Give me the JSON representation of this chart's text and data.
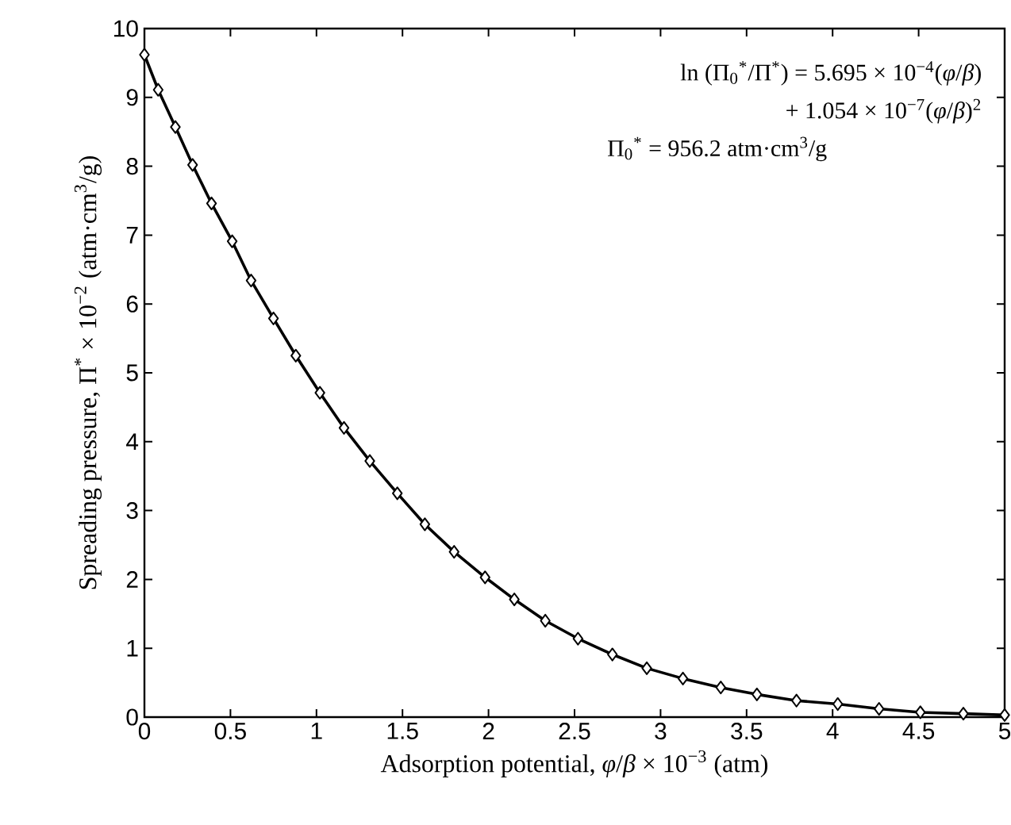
{
  "chart_data": {
    "type": "line",
    "xlabel": "Adsorption potential, *φ*/*β* × 10$^{−3}$ (atm)",
    "ylabel": "Spreading pressure, Π$^{*}$ × 10$^{−2}$ (atm·cm$^{3}$/g)",
    "annotations": [
      "ln (Π$_{0}$$^{*}$/Π$^{*}$) = 5.695 × 10$^{−4}$(*φ*/*β*)",
      "+ 1.054 × 10$^{−7}$(*φ*/*β*)$^{2}$",
      "Π$_{0}$$^{*}$ = 956.2 atm·cm$^{3}$/g"
    ],
    "series": [
      {
        "color": "#000000",
        "x": [
          0,
          0.08,
          0.18,
          0.28,
          0.39,
          0.51,
          0.62,
          0.75,
          0.88,
          1.02,
          1.16,
          1.31,
          1.47,
          1.63,
          1.8,
          1.98,
          2.15,
          2.33,
          2.52,
          2.72,
          2.92,
          3.13,
          3.35,
          3.56,
          3.79,
          4.03,
          4.27,
          4.51,
          4.76,
          5.0
        ],
        "values": [
          9.62,
          9.11,
          8.57,
          8.02,
          7.46,
          6.91,
          6.34,
          5.79,
          5.25,
          4.71,
          4.2,
          3.72,
          3.25,
          2.8,
          2.4,
          2.03,
          1.71,
          1.4,
          1.14,
          0.91,
          0.71,
          0.56,
          0.43,
          0.33,
          0.24,
          0.19,
          0.12,
          0.07,
          0.05,
          0.03
        ]
      }
    ],
    "xlim": [
      0,
      5
    ],
    "ylim": [
      0,
      10
    ],
    "xticks": [
      0,
      0.5,
      1,
      1.5,
      2,
      2.5,
      3,
      3.5,
      4,
      4.5,
      5
    ],
    "yticks": [
      0,
      1,
      2,
      3,
      4,
      5,
      6,
      7,
      8,
      9,
      10
    ],
    "grid": false,
    "marker": "diamond",
    "line_style": "solid"
  }
}
